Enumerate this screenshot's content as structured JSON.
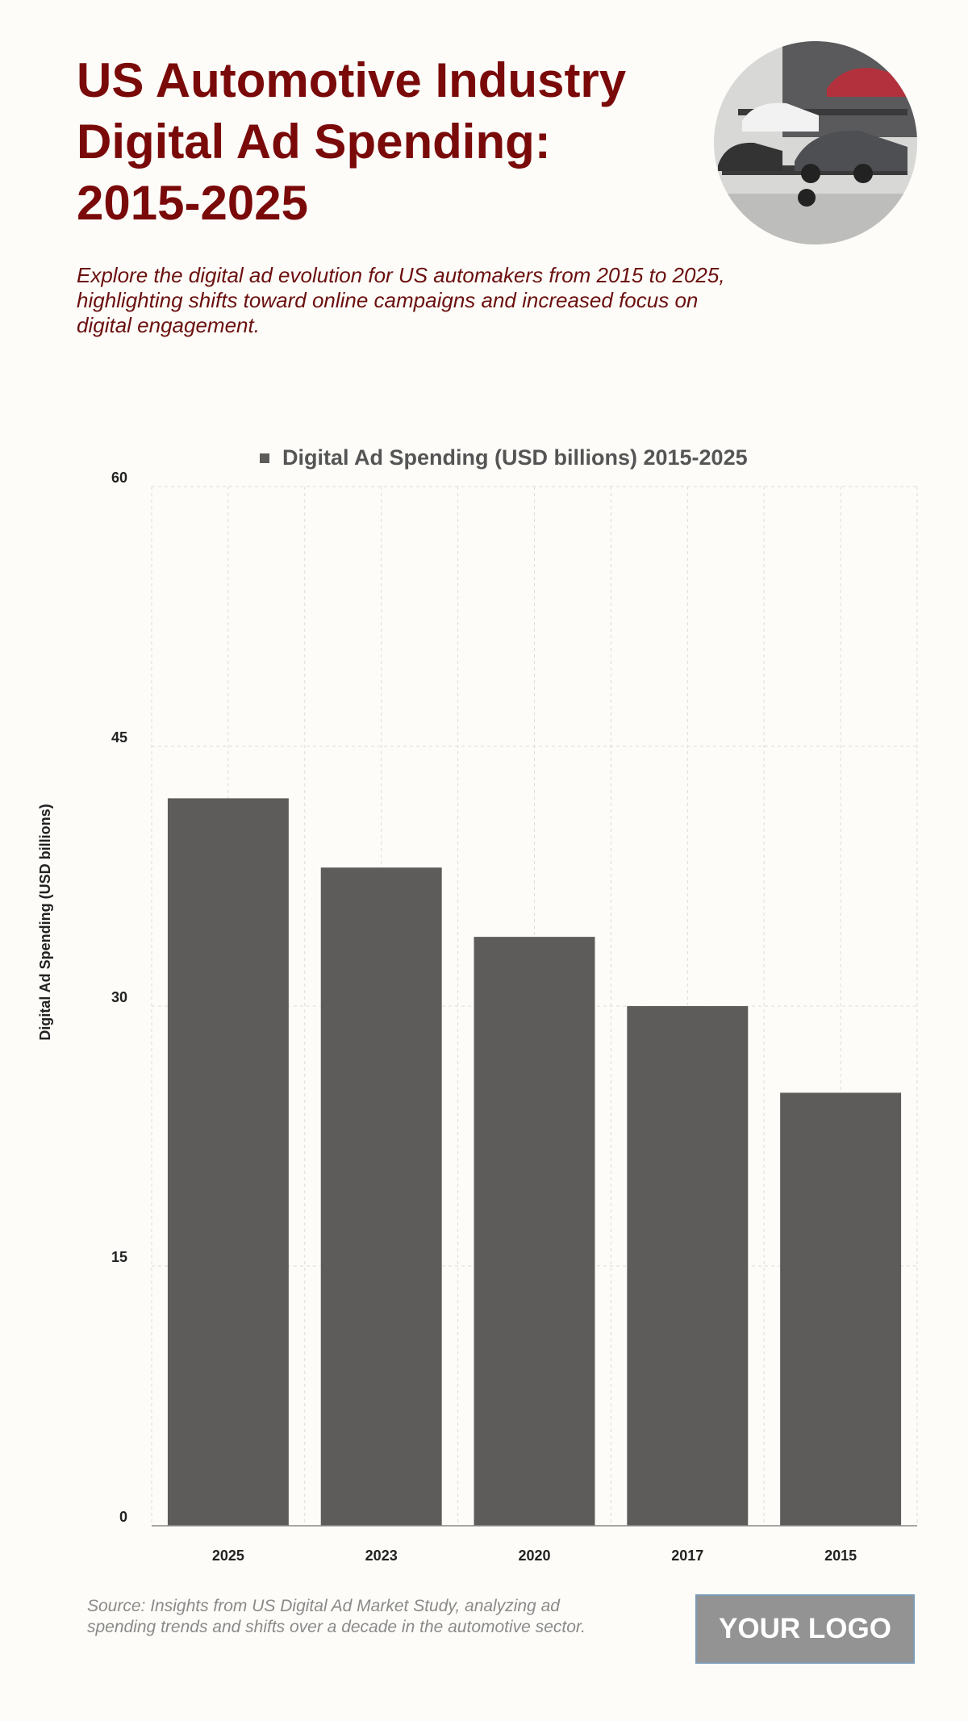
{
  "header": {
    "title": "US Automotive Industry Digital Ad Spending: 2015-2025",
    "subtitle": "Explore the digital ad evolution for US automakers from 2015 to 2025, highlighting shifts toward online campaigns and increased focus on digital engagement."
  },
  "chart_data": {
    "type": "bar",
    "categories": [
      "2025",
      "2023",
      "2020",
      "2017",
      "2015"
    ],
    "series": [
      {
        "name": "Digital Ad Spending (USD billions) 2015-2025",
        "color": "#5d5c5a",
        "values": [
          42,
          38,
          34,
          30,
          25
        ]
      }
    ],
    "y_label": "Digital Ad Spending (USD billions)",
    "ylim": [
      0,
      60
    ],
    "yticks": [
      0,
      15,
      30,
      45,
      60
    ],
    "grid": true,
    "legend": "top"
  },
  "footer": {
    "source": "Source: Insights from US Digital Ad Market Study, analyzing ad spending trends and shifts over a decade in the automotive sector.",
    "logo": "YOUR LOGO"
  }
}
